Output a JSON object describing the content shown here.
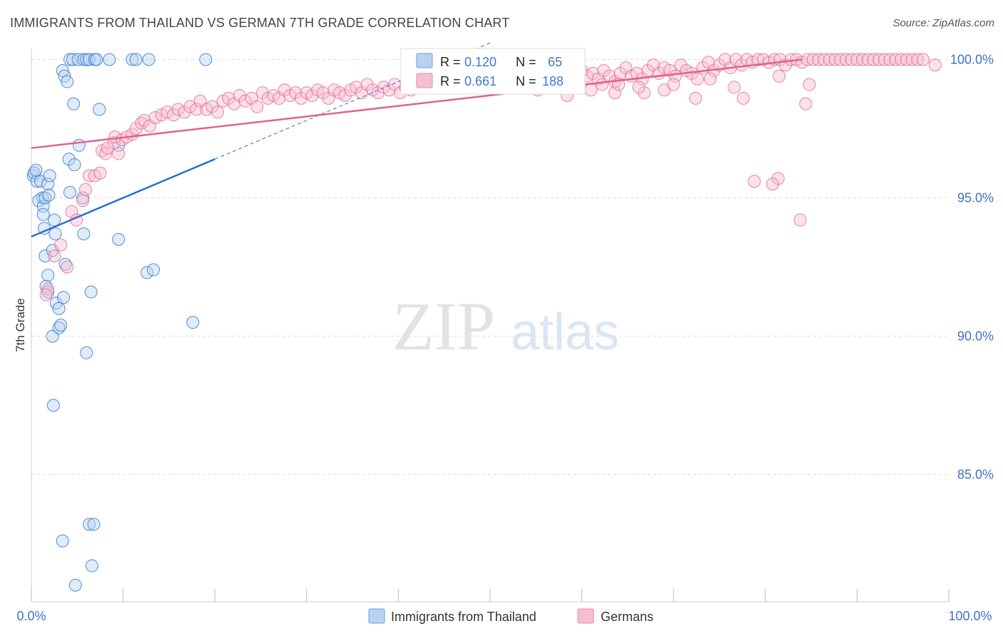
{
  "header": {
    "title": "IMMIGRANTS FROM THAILAND VS GERMAN 7TH GRADE CORRELATION CHART",
    "source": "Source: ZipAtlas.com"
  },
  "watermark": {
    "zip": "ZIP",
    "atlas": "atlas"
  },
  "colors": {
    "blue": "#3a78d0",
    "blue_fill": "#b9d2f2",
    "blue_line": "#2b6fcf",
    "pink": "#e86c95",
    "pink_fill": "#f6bfd0",
    "pink_line": "#e0628e",
    "axis_text": "#3f72c8",
    "grid": "#dddddd"
  },
  "chart_data": {
    "type": "scatter",
    "title": "IMMIGRANTS FROM THAILAND VS GERMAN 7TH GRADE CORRELATION CHART",
    "xlabel": "",
    "ylabel": "7th Grade",
    "xlim": [
      0,
      100
    ],
    "ylim": [
      80.4,
      100.4
    ],
    "x_tick_labels": [
      "0.0%",
      "100.0%"
    ],
    "y_ticks": [
      {
        "value": 100,
        "label": "100.0%"
      },
      {
        "value": 95,
        "label": "95.0%"
      },
      {
        "value": 90,
        "label": "90.0%"
      },
      {
        "value": 85,
        "label": "85.0%"
      }
    ],
    "legend": [
      {
        "r_label": "R =",
        "r_value": "0.120",
        "n_label": "N =",
        "n_value": "65"
      },
      {
        "r_label": "R =",
        "r_value": "0.661",
        "n_label": "N =",
        "n_value": "188"
      }
    ],
    "series": [
      {
        "name": "Immigrants from Thailand",
        "color": "#3a78d0",
        "trend": {
          "x0": 0,
          "y0": 93.6,
          "x1": 20,
          "y1": 96.4,
          "dash_to_x": 50,
          "dash_to_y": 100.6
        },
        "points": [
          [
            0.2,
            95.8
          ],
          [
            0.3,
            95.9
          ],
          [
            0.6,
            95.6
          ],
          [
            0.5,
            96.0
          ],
          [
            1.0,
            95.6
          ],
          [
            1.2,
            95.0
          ],
          [
            0.8,
            94.9
          ],
          [
            1.3,
            94.7
          ],
          [
            1.5,
            95.0
          ],
          [
            1.8,
            95.5
          ],
          [
            2.0,
            95.8
          ],
          [
            1.9,
            95.1
          ],
          [
            2.5,
            94.2
          ],
          [
            1.3,
            94.4
          ],
          [
            1.4,
            93.9
          ],
          [
            2.6,
            93.7
          ],
          [
            1.5,
            92.9
          ],
          [
            2.3,
            93.1
          ],
          [
            1.8,
            92.2
          ],
          [
            1.6,
            91.8
          ],
          [
            1.8,
            91.6
          ],
          [
            2.7,
            91.2
          ],
          [
            3.0,
            91.0
          ],
          [
            3.5,
            91.4
          ],
          [
            2.3,
            90.0
          ],
          [
            3.0,
            90.3
          ],
          [
            3.2,
            90.4
          ],
          [
            3.4,
            99.6
          ],
          [
            3.6,
            99.4
          ],
          [
            3.9,
            99.2
          ],
          [
            4.6,
            98.4
          ],
          [
            5.2,
            96.9
          ],
          [
            4.1,
            96.4
          ],
          [
            4.7,
            96.2
          ],
          [
            5.6,
            95.0
          ],
          [
            4.2,
            95.2
          ],
          [
            5.7,
            93.7
          ],
          [
            3.7,
            92.6
          ],
          [
            6.5,
            91.6
          ],
          [
            6.0,
            89.4
          ],
          [
            2.4,
            87.5
          ],
          [
            3.4,
            82.6
          ],
          [
            6.3,
            83.2
          ],
          [
            6.8,
            83.2
          ],
          [
            6.6,
            81.7
          ],
          [
            4.8,
            81.0
          ],
          [
            4.2,
            100.0
          ],
          [
            4.5,
            100.0
          ],
          [
            5.1,
            100.0
          ],
          [
            5.7,
            100.0
          ],
          [
            6.0,
            100.0
          ],
          [
            6.3,
            100.0
          ],
          [
            6.9,
            100.0
          ],
          [
            7.1,
            100.0
          ],
          [
            8.5,
            100.0
          ],
          [
            11.0,
            100.0
          ],
          [
            11.4,
            100.0
          ],
          [
            12.8,
            100.0
          ],
          [
            19.0,
            100.0
          ],
          [
            7.4,
            98.2
          ],
          [
            9.5,
            96.9
          ],
          [
            9.5,
            93.5
          ],
          [
            12.6,
            92.3
          ],
          [
            13.3,
            92.4
          ],
          [
            17.6,
            90.5
          ]
        ]
      },
      {
        "name": "Germans",
        "color": "#e86c95",
        "trend": {
          "x0": 0,
          "y0": 96.8,
          "x1": 84,
          "y1": 100.0
        },
        "points": [
          [
            1.8,
            91.7
          ],
          [
            1.6,
            91.5
          ],
          [
            2.5,
            92.9
          ],
          [
            3.2,
            93.3
          ],
          [
            3.9,
            92.5
          ],
          [
            4.4,
            94.5
          ],
          [
            4.9,
            94.2
          ],
          [
            5.6,
            94.9
          ],
          [
            5.9,
            95.3
          ],
          [
            6.3,
            95.8
          ],
          [
            6.9,
            95.8
          ],
          [
            7.5,
            95.9
          ],
          [
            7.7,
            96.7
          ],
          [
            8.1,
            96.6
          ],
          [
            8.3,
            96.8
          ],
          [
            9.5,
            96.6
          ],
          [
            9.0,
            97.0
          ],
          [
            9.1,
            97.2
          ],
          [
            9.9,
            97.1
          ],
          [
            10.4,
            97.2
          ],
          [
            11.0,
            97.3
          ],
          [
            11.4,
            97.5
          ],
          [
            12.0,
            97.7
          ],
          [
            12.3,
            97.8
          ],
          [
            12.9,
            97.6
          ],
          [
            13.5,
            97.9
          ],
          [
            14.2,
            98.0
          ],
          [
            14.8,
            98.1
          ],
          [
            15.5,
            98.0
          ],
          [
            16.0,
            98.2
          ],
          [
            16.7,
            98.1
          ],
          [
            17.3,
            98.3
          ],
          [
            18.0,
            98.2
          ],
          [
            18.4,
            98.5
          ],
          [
            19.1,
            98.2
          ],
          [
            19.7,
            98.3
          ],
          [
            20.3,
            98.1
          ],
          [
            20.9,
            98.5
          ],
          [
            21.5,
            98.6
          ],
          [
            22.1,
            98.4
          ],
          [
            22.7,
            98.7
          ],
          [
            23.3,
            98.5
          ],
          [
            24.0,
            98.6
          ],
          [
            24.6,
            98.3
          ],
          [
            25.2,
            98.8
          ],
          [
            25.8,
            98.6
          ],
          [
            26.4,
            98.7
          ],
          [
            27.0,
            98.6
          ],
          [
            27.6,
            98.9
          ],
          [
            28.2,
            98.7
          ],
          [
            28.8,
            98.8
          ],
          [
            29.4,
            98.6
          ],
          [
            30.0,
            98.8
          ],
          [
            30.6,
            98.7
          ],
          [
            31.2,
            98.9
          ],
          [
            31.8,
            98.8
          ],
          [
            32.4,
            98.6
          ],
          [
            33.0,
            98.9
          ],
          [
            33.6,
            98.8
          ],
          [
            34.2,
            98.7
          ],
          [
            34.8,
            98.9
          ],
          [
            35.4,
            99.0
          ],
          [
            36.0,
            98.8
          ],
          [
            36.6,
            99.1
          ],
          [
            37.2,
            98.9
          ],
          [
            37.8,
            98.8
          ],
          [
            38.4,
            99.0
          ],
          [
            39.0,
            98.9
          ],
          [
            39.6,
            99.1
          ],
          [
            40.2,
            98.8
          ],
          [
            40.8,
            99.0
          ],
          [
            41.4,
            98.9
          ],
          [
            42.0,
            99.2
          ],
          [
            42.6,
            99.1
          ],
          [
            43.2,
            99.0
          ],
          [
            43.8,
            99.3
          ],
          [
            44.4,
            99.1
          ],
          [
            45.0,
            99.2
          ],
          [
            45.6,
            99.0
          ],
          [
            46.2,
            99.3
          ],
          [
            46.8,
            99.1
          ],
          [
            47.4,
            99.2
          ],
          [
            48.0,
            99.4
          ],
          [
            48.6,
            99.3
          ],
          [
            49.2,
            99.2
          ],
          [
            49.8,
            99.4
          ],
          [
            50.4,
            99.3
          ],
          [
            51.0,
            99.5
          ],
          [
            51.6,
            99.2
          ],
          [
            52.2,
            99.4
          ],
          [
            52.8,
            99.3
          ],
          [
            53.4,
            99.6
          ],
          [
            54.0,
            99.4
          ],
          [
            54.6,
            99.5
          ],
          [
            55.2,
            99.3
          ],
          [
            55.8,
            99.4
          ],
          [
            56.4,
            99.6
          ],
          [
            57.0,
            99.5
          ],
          [
            57.6,
            99.4
          ],
          [
            58.2,
            99.6
          ],
          [
            58.8,
            99.3
          ],
          [
            59.4,
            99.5
          ],
          [
            60.0,
            99.6
          ],
          [
            60.6,
            99.4
          ],
          [
            61.2,
            99.5
          ],
          [
            61.8,
            99.3
          ],
          [
            62.4,
            99.6
          ],
          [
            63.0,
            99.4
          ],
          [
            63.6,
            99.2
          ],
          [
            64.2,
            99.5
          ],
          [
            64.8,
            99.7
          ],
          [
            65.4,
            99.4
          ],
          [
            66.0,
            99.5
          ],
          [
            66.6,
            99.3
          ],
          [
            67.2,
            99.6
          ],
          [
            67.8,
            99.8
          ],
          [
            68.4,
            99.5
          ],
          [
            69.0,
            99.7
          ],
          [
            69.6,
            99.6
          ],
          [
            70.2,
            99.4
          ],
          [
            70.8,
            99.8
          ],
          [
            71.4,
            99.6
          ],
          [
            72.0,
            99.5
          ],
          [
            72.6,
            99.3
          ],
          [
            73.2,
            99.7
          ],
          [
            73.8,
            99.9
          ],
          [
            74.4,
            99.6
          ],
          [
            75.0,
            99.8
          ],
          [
            75.6,
            100.0
          ],
          [
            76.2,
            99.7
          ],
          [
            76.8,
            100.0
          ],
          [
            77.4,
            99.8
          ],
          [
            78.0,
            100.0
          ],
          [
            78.6,
            99.9
          ],
          [
            79.2,
            100.0
          ],
          [
            79.8,
            100.0
          ],
          [
            80.4,
            99.9
          ],
          [
            81.0,
            100.0
          ],
          [
            81.6,
            100.0
          ],
          [
            82.2,
            99.8
          ],
          [
            82.8,
            100.0
          ],
          [
            83.4,
            100.0
          ],
          [
            84.0,
            99.9
          ],
          [
            84.6,
            100.0
          ],
          [
            85.2,
            100.0
          ],
          [
            85.8,
            100.0
          ],
          [
            86.4,
            100.0
          ],
          [
            87.0,
            100.0
          ],
          [
            87.6,
            100.0
          ],
          [
            88.2,
            100.0
          ],
          [
            88.8,
            100.0
          ],
          [
            89.4,
            100.0
          ],
          [
            90.0,
            100.0
          ],
          [
            90.6,
            100.0
          ],
          [
            91.2,
            100.0
          ],
          [
            91.8,
            100.0
          ],
          [
            92.4,
            100.0
          ],
          [
            93.0,
            100.0
          ],
          [
            93.6,
            100.0
          ],
          [
            94.2,
            100.0
          ],
          [
            94.8,
            100.0
          ],
          [
            95.4,
            100.0
          ],
          [
            96.0,
            100.0
          ],
          [
            96.6,
            100.0
          ],
          [
            97.2,
            100.0
          ],
          [
            98.5,
            99.8
          ],
          [
            76.6,
            99.0
          ],
          [
            77.6,
            98.6
          ],
          [
            72.4,
            98.6
          ],
          [
            69.0,
            98.9
          ],
          [
            66.8,
            98.8
          ],
          [
            63.6,
            98.8
          ],
          [
            61.0,
            98.9
          ],
          [
            58.4,
            98.7
          ],
          [
            55.2,
            98.9
          ],
          [
            84.4,
            98.4
          ],
          [
            81.4,
            95.7
          ],
          [
            78.8,
            95.6
          ],
          [
            80.8,
            95.5
          ],
          [
            83.8,
            94.2
          ],
          [
            64.0,
            99.1
          ],
          [
            66.2,
            99.0
          ],
          [
            70.0,
            99.1
          ],
          [
            74.0,
            99.3
          ],
          [
            81.5,
            99.4
          ],
          [
            84.8,
            99.1
          ],
          [
            59.5,
            99.0
          ],
          [
            62.2,
            99.1
          ]
        ]
      }
    ]
  }
}
